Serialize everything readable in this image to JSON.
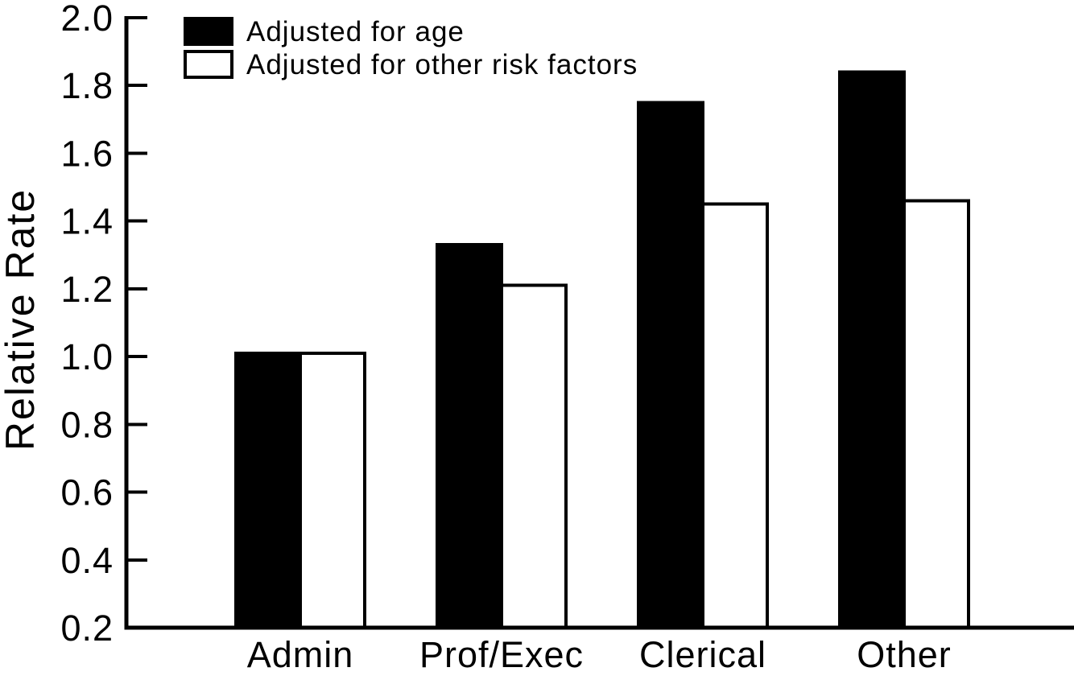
{
  "figure": {
    "background": "#ffffff",
    "ink": "#000000"
  },
  "chart_data": {
    "type": "bar",
    "title": "",
    "xlabel": "",
    "ylabel": "Relative Rate",
    "categories": [
      "Admin",
      "Prof/Exec",
      "Clerical",
      "Other"
    ],
    "series": [
      {
        "name": "Adjusted for age",
        "fill": "#000000",
        "values": [
          1.01,
          1.33,
          1.75,
          1.84
        ]
      },
      {
        "name": "Adjusted for other risk factors",
        "fill": "#ffffff",
        "values": [
          1.01,
          1.21,
          1.45,
          1.46
        ]
      }
    ],
    "ylim": [
      0.2,
      2.0
    ],
    "yticks": [
      2.0,
      1.8,
      1.6,
      1.4,
      1.2,
      1.0,
      0.8,
      0.6,
      0.4,
      0.2
    ],
    "ytick_labels": [
      "2.0",
      "1.8",
      "1.6",
      "1.4",
      "1.2",
      "1.0",
      "0.8",
      "0.6",
      "0.4",
      "0.2"
    ],
    "grid": false,
    "legend_position": "top-left",
    "bar_outline": "#000000"
  }
}
